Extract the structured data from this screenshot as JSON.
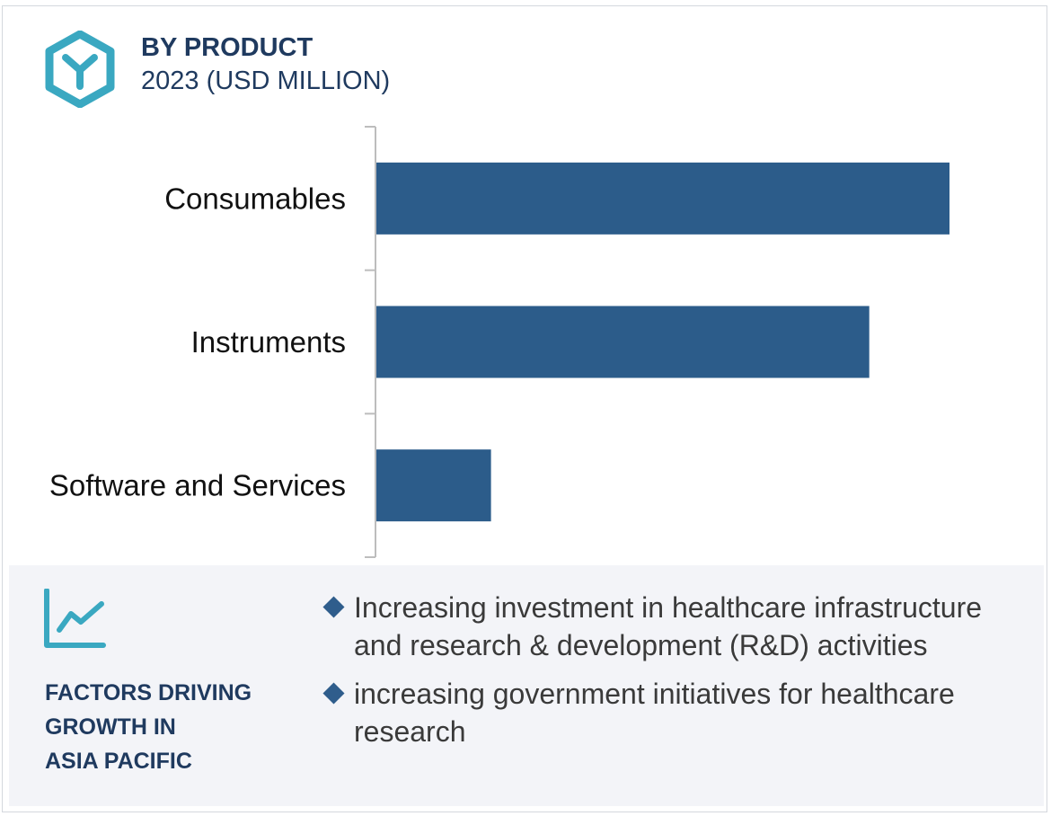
{
  "header": {
    "title": "BY PRODUCT",
    "subtitle": "2023 (USD MILLION)"
  },
  "colors": {
    "bar": "#2c5c8a",
    "title": "#1f3a5f",
    "accent": "#3aa8c1",
    "bullet": "#2f5d8c",
    "panel": "#f3f4f8"
  },
  "icons": {
    "logo": "hexagon-y-icon",
    "trend": "line-chart-icon",
    "bullet": "diamond-bullet-icon"
  },
  "chart_data": {
    "type": "bar",
    "orientation": "horizontal",
    "title": "BY PRODUCT",
    "subtitle": "2023 (USD MILLION)",
    "categories": [
      "Consumables",
      "Instruments",
      "Software and Services"
    ],
    "values": [
      100,
      86,
      20
    ],
    "xlim": [
      0,
      100
    ],
    "xlabel": "",
    "ylabel": "",
    "value_axis_visible": false,
    "grid": false,
    "legend": "none"
  },
  "factors": {
    "title_lines": [
      "FACTORS DRIVING",
      "GROWTH IN",
      "ASIA PACIFIC"
    ],
    "items": [
      "Increasing investment in healthcare infrastructure and research & development (R&D) activities",
      "increasing government initiatives for healthcare research"
    ]
  }
}
